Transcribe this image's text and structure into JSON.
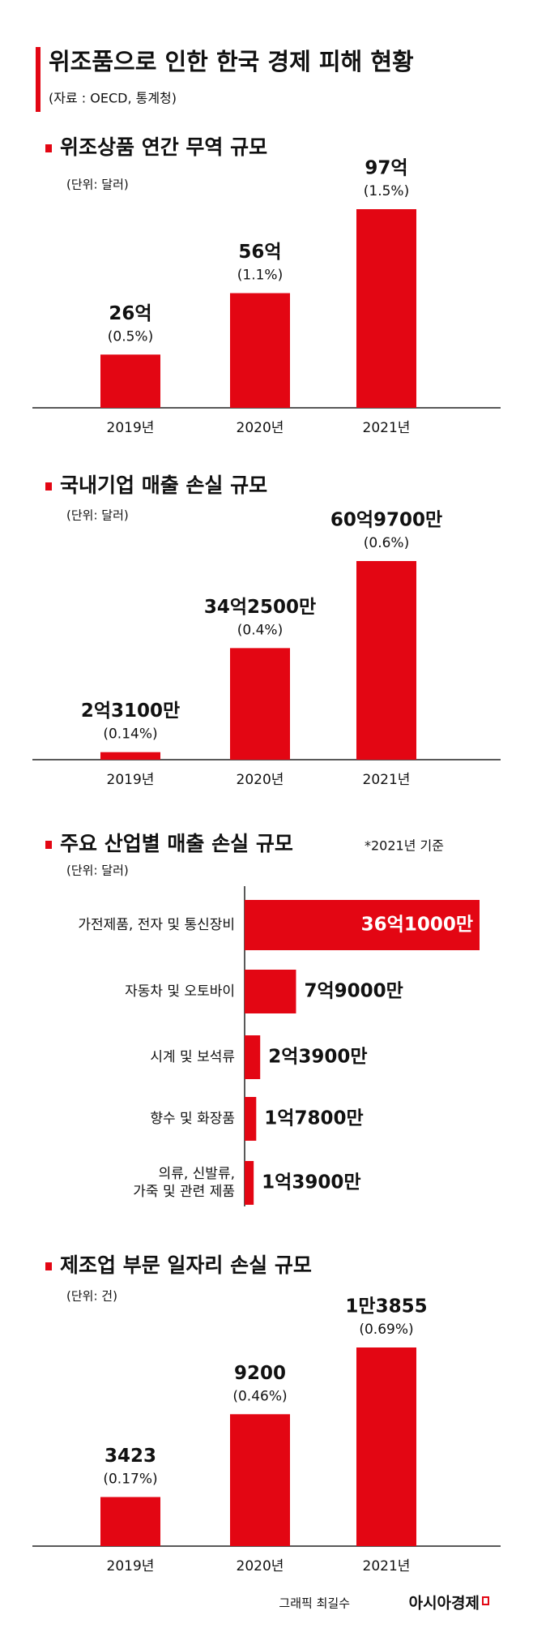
{
  "title": "위조품으로 인한 한국 경제 피해 현황",
  "source": "(자료 : OECD, 통계청)",
  "chart_data": [
    {
      "type": "bar",
      "title": "위조상품 연간 무역 규모",
      "unit_label": "(단위: 달러)",
      "categories": [
        "2019년",
        "2020년",
        "2021년"
      ],
      "values": [
        2600000000,
        5600000000,
        9700000000
      ],
      "value_labels": [
        "26억",
        "56억",
        "97억"
      ],
      "share_labels": [
        "(0.5%)",
        "(1.1%)",
        "(1.5%)"
      ],
      "color": "#e30613"
    },
    {
      "type": "bar",
      "title": "국내기업 매출 손실 규모",
      "unit_label": "(단위: 달러)",
      "categories": [
        "2019년",
        "2020년",
        "2021년"
      ],
      "values": [
        231000000,
        3425000000,
        6097000000
      ],
      "value_labels": [
        "2억3100만",
        "34억2500만",
        "60억9700만"
      ],
      "share_labels": [
        "(0.14%)",
        "(0.4%)",
        "(0.6%)"
      ],
      "color": "#e30613"
    },
    {
      "type": "barh",
      "title": "주요 산업별 매출 손실 규모",
      "note": "*2021년 기준",
      "unit_label": "(단위: 달러)",
      "categories": [
        "가전제품, 전자 및 통신장비",
        "자동차 및 오토바이",
        "시계 및 보석류",
        "향수 및 화장품",
        "의류, 신발류,\n가죽 및 관련 제품"
      ],
      "values": [
        3610000000,
        790000000,
        239000000,
        178000000,
        139000000
      ],
      "value_labels": [
        "36억1000만",
        "7억9000만",
        "2억3900만",
        "1억7800만",
        "1억3900만"
      ],
      "color": "#e30613"
    },
    {
      "type": "bar",
      "title": "제조업 부문 일자리 손실 규모",
      "unit_label": "(단위: 건)",
      "categories": [
        "2019년",
        "2020년",
        "2021년"
      ],
      "values": [
        3423,
        9200,
        13855
      ],
      "value_labels": [
        "3423",
        "9200",
        "1만3855"
      ],
      "share_labels": [
        "(0.17%)",
        "(0.46%)",
        "(0.69%)"
      ],
      "color": "#e30613"
    }
  ],
  "footer": {
    "credit": "그래픽 최길수",
    "brand": "아시아경제"
  }
}
